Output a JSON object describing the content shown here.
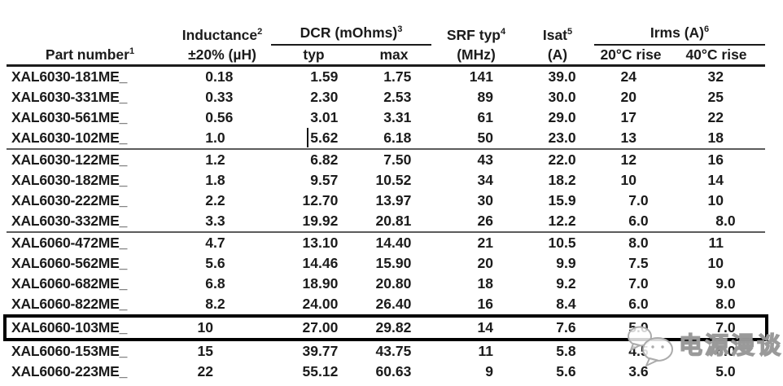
{
  "table": {
    "headers": {
      "part": "Part number",
      "part_sup": "1",
      "inductance_l1": "Inductance",
      "inductance_sup": "2",
      "inductance_l2": "±20% (µH)",
      "dcr": "DCR (mOhms)",
      "dcr_sup": "3",
      "dcr_typ": "typ",
      "dcr_max": "max",
      "srf_l1": "SRF typ",
      "srf_sup": "4",
      "srf_l2": "(MHz)",
      "isat_l1": "Isat",
      "isat_sup": "5",
      "isat_l2": "(A)",
      "irms": "Irms (A)",
      "irms_sup": "6",
      "irms_20": "20°C rise",
      "irms_40": "40°C rise"
    },
    "rows": [
      {
        "part": "XAL6030-181ME_",
        "l": "0.18",
        "typ": "1.59",
        "max": "1.75",
        "srf": "141",
        "isat": "39.0",
        "i20": "24",
        "i40": "32"
      },
      {
        "part": "XAL6030-331ME_",
        "l": "0.33",
        "typ": "2.30",
        "max": "2.53",
        "srf": "89",
        "isat": "30.0",
        "i20": "20",
        "i40": "25"
      },
      {
        "part": "XAL6030-561ME_",
        "l": "0.56",
        "typ": "3.01",
        "max": "3.31",
        "srf": "61",
        "isat": "29.0",
        "i20": "17",
        "i40": "22"
      },
      {
        "part": "XAL6030-102ME_",
        "l": "1.0",
        "typ": "5.62",
        "max": "6.18",
        "srf": "50",
        "isat": "23.0",
        "i20": "13",
        "i40": "18",
        "caret_before_typ": true
      },
      {
        "part": "XAL6030-122ME_",
        "l": "1.2",
        "typ": "6.82",
        "max": "7.50",
        "srf": "43",
        "isat": "22.0",
        "i20": "12",
        "i40": "16",
        "sep_above": true
      },
      {
        "part": "XAL6030-182ME_",
        "l": "1.8",
        "typ": "9.57",
        "max": "10.52",
        "srf": "34",
        "isat": "18.2",
        "i20": "10",
        "i40": "14"
      },
      {
        "part": "XAL6030-222ME_",
        "l": "2.2",
        "typ": "12.70",
        "max": "13.97",
        "srf": "30",
        "isat": "15.9",
        "i20": "7.0",
        "i40": "10"
      },
      {
        "part": "XAL6030-332ME_",
        "l": "3.3",
        "typ": "19.92",
        "max": "20.81",
        "srf": "26",
        "isat": "12.2",
        "i20": "6.0",
        "i40": "8.0"
      },
      {
        "part": "XAL6060-472ME_",
        "l": "4.7",
        "typ": "13.10",
        "max": "14.40",
        "srf": "21",
        "isat": "10.5",
        "i20": "8.0",
        "i40": "11",
        "sep_above": true
      },
      {
        "part": "XAL6060-562ME_",
        "l": "5.6",
        "typ": "14.46",
        "max": "15.90",
        "srf": "20",
        "isat": "9.9",
        "i20": "7.5",
        "i40": "10"
      },
      {
        "part": "XAL6060-682ME_",
        "l": "6.8",
        "typ": "18.90",
        "max": "20.80",
        "srf": "18",
        "isat": "9.2",
        "i20": "7.0",
        "i40": "9.0"
      },
      {
        "part": "XAL6060-822ME_",
        "l": "8.2",
        "typ": "24.00",
        "max": "26.40",
        "srf": "16",
        "isat": "8.4",
        "i20": "6.0",
        "i40": "8.0"
      },
      {
        "part": "XAL6060-103ME_",
        "l": "10",
        "typ": "27.00",
        "max": "29.82",
        "srf": "14",
        "isat": "7.6",
        "i20": "5.0",
        "i40": "7.0",
        "highlight": true
      },
      {
        "part": "XAL6060-153ME_",
        "l": "15",
        "typ": "39.77",
        "max": "43.75",
        "srf": "11",
        "isat": "5.8",
        "i20": "4.5",
        "i40": "6.0"
      },
      {
        "part": "XAL6060-223ME_",
        "l": "22",
        "typ": "55.12",
        "max": "60.63",
        "srf": "9",
        "isat": "5.6",
        "i20": "3.6",
        "i40": "5.0"
      }
    ]
  },
  "watermark": {
    "text": "电源漫谈",
    "icon": "wechat-logo-icon"
  },
  "colors": {
    "text": "#1b1b1b",
    "header_rule": "#1c1c1c",
    "group_separator": "#5c5c5c",
    "highlight_border": "#000000",
    "watermark_gray": "#9a9a9a"
  }
}
